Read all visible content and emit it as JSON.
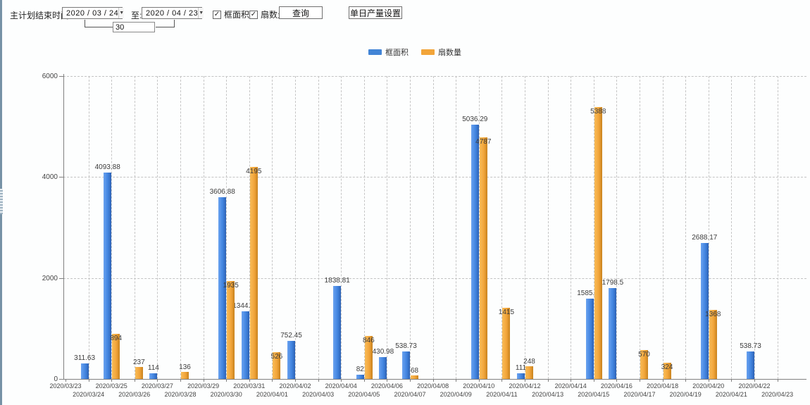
{
  "toolbar": {
    "end_time_label": "主计划结束时间:",
    "start_date": "2020 / 03 / 24",
    "to_label": "至:",
    "end_date": "2020 / 04 / 23",
    "span_days": "30",
    "dropdown_arrow": "▼",
    "check_glyph": "✓",
    "checkbox_frame_area": "框面积",
    "checkbox_sash_count": "扇数量",
    "query_button": "查询",
    "daily_output_button": "单日产量设置"
  },
  "legend": {
    "items": [
      {
        "label": "框面积",
        "color": "#4285d6"
      },
      {
        "label": "扇数量",
        "color": "#f2a53a"
      }
    ]
  },
  "chart_data": {
    "type": "bar",
    "title": "",
    "xlabel": "",
    "ylabel": "",
    "ylim": [
      0,
      6000
    ],
    "yticks": [
      0,
      2000,
      4000,
      6000
    ],
    "grid": "dashed",
    "legend_position": "top-center",
    "categories": [
      "2020/03/23",
      "2020/03/24",
      "2020/03/25",
      "2020/03/26",
      "2020/03/27",
      "2020/03/28",
      "2020/03/29",
      "2020/03/30",
      "2020/03/31",
      "2020/04/01",
      "2020/04/02",
      "2020/04/03",
      "2020/04/04",
      "2020/04/05",
      "2020/04/06",
      "2020/04/07",
      "2020/04/08",
      "2020/04/09",
      "2020/04/10",
      "2020/04/11",
      "2020/04/12",
      "2020/04/13",
      "2020/04/14",
      "2020/04/15",
      "2020/04/16",
      "2020/04/17",
      "2020/04/18",
      "2020/04/19",
      "2020/04/20",
      "2020/04/21",
      "2020/04/22",
      "2020/04/23"
    ],
    "series": [
      {
        "name": "框面积",
        "color_light": "#6aa2f0",
        "color_mid": "#4285e0",
        "color_dark": "#2d62b5",
        "values": [
          null,
          311.63,
          4093.88,
          null,
          114,
          null,
          null,
          3606.88,
          1344.95,
          null,
          752.45,
          null,
          1838.81,
          82,
          430.98,
          538.73,
          null,
          null,
          5036.29,
          null,
          111,
          null,
          null,
          1585.96,
          1798.5,
          null,
          null,
          null,
          2688.17,
          null,
          538.73,
          null
        ]
      },
      {
        "name": "扇数量",
        "color_light": "#f8bc58",
        "color_mid": "#f2a53a",
        "color_dark": "#c8821e",
        "values": [
          null,
          null,
          894,
          237,
          null,
          136,
          null,
          1935,
          4195,
          526,
          null,
          null,
          null,
          846,
          null,
          68,
          null,
          null,
          4787,
          1415,
          248,
          null,
          null,
          5388,
          null,
          570,
          324,
          null,
          1368,
          null,
          null,
          null
        ]
      }
    ]
  }
}
